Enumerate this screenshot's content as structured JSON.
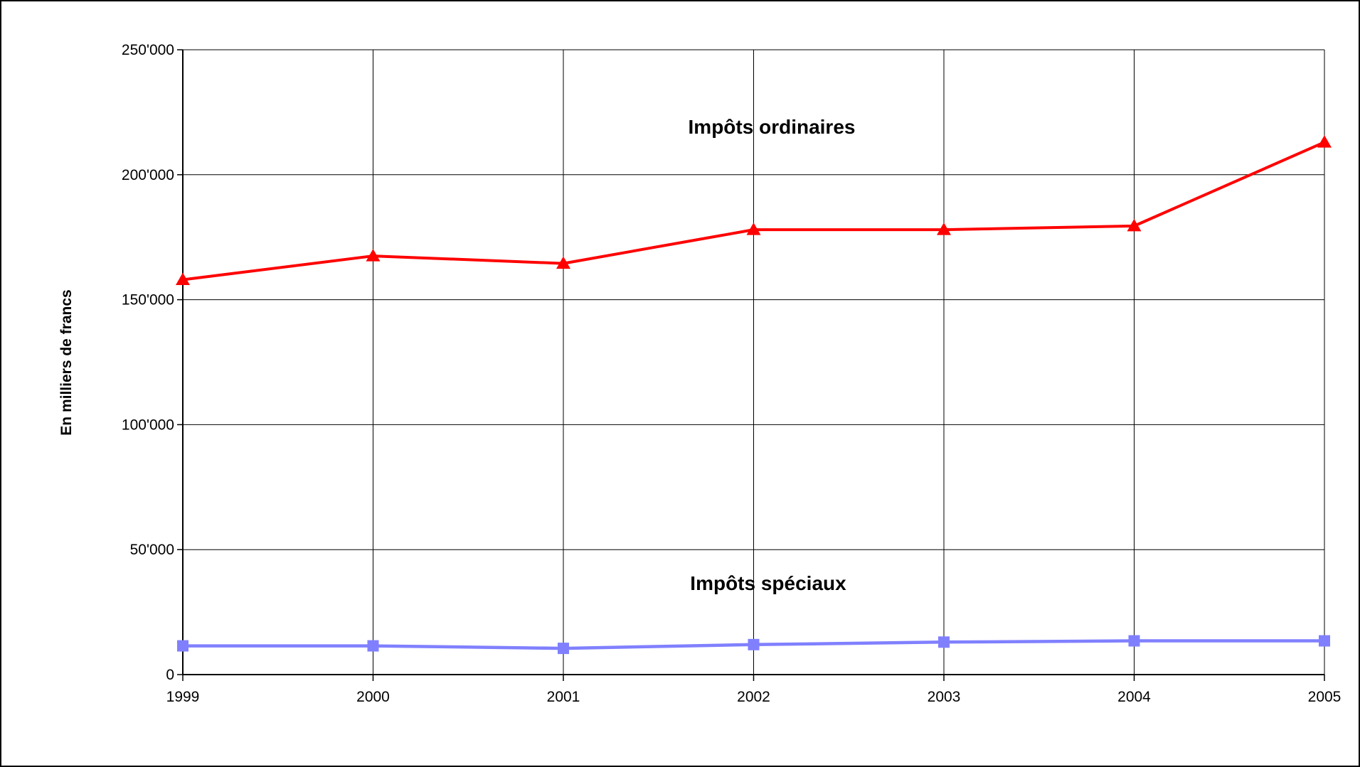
{
  "chart_data": {
    "type": "line",
    "title": "",
    "xlabel": "",
    "ylabel": "En milliers de francs",
    "x": [
      "1999",
      "2000",
      "2001",
      "2002",
      "2003",
      "2004",
      "2005"
    ],
    "ylim": [
      0,
      250000
    ],
    "yticks": [
      0,
      50000,
      100000,
      150000,
      200000,
      250000
    ],
    "ytick_labels": [
      "0",
      "50'000",
      "100'000",
      "150'000",
      "200'000",
      "250'000"
    ],
    "grid": true,
    "legend": "none",
    "series": [
      {
        "name": "Impôts ordinaires",
        "color": "#ff0000",
        "marker": "triangle",
        "values": [
          158000,
          167500,
          164500,
          178000,
          178000,
          179500,
          213000
        ]
      },
      {
        "name": "Impôts spéciaux",
        "color": "#8080ff",
        "marker": "square",
        "values": [
          11500,
          11500,
          10500,
          12000,
          13000,
          13500,
          13500
        ]
      }
    ]
  }
}
